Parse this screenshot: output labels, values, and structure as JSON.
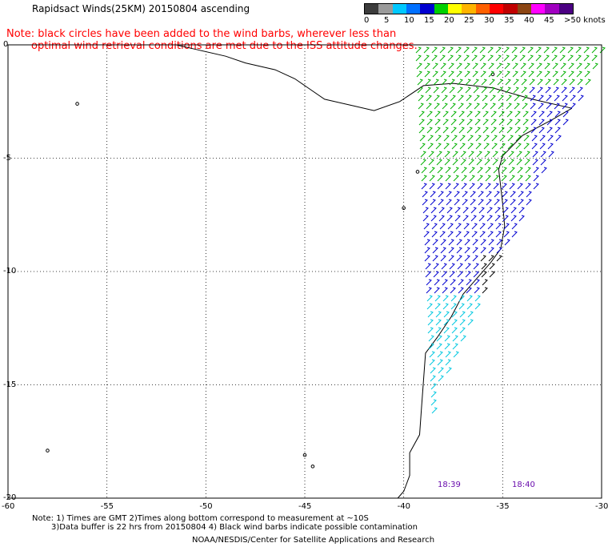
{
  "title": "Rapidsact Winds(25KM) 20150804 ascending",
  "note": {
    "line1": "Note: black circles have been added to the wind barbs, wherever less than",
    "line2": "optimal wind retrieval conditions are met due to the ISS attitude changes."
  },
  "legend": {
    "labels": [
      "0",
      "5",
      "10",
      "15",
      "20",
      "25",
      "30",
      "35",
      "40",
      "45",
      ">50 knots"
    ],
    "colors": [
      "#3c3c3c",
      "#9a9a9a",
      "#00c8ff",
      "#0070ff",
      "#0000d0",
      "#00d000",
      "#ffff00",
      "#ffb400",
      "#ff6000",
      "#ff0000",
      "#c00000",
      "#8b4513",
      "#ff00ff",
      "#a000c0",
      "#4b0082"
    ]
  },
  "axes": {
    "x_ticks": [
      "-60",
      "-55",
      "-50",
      "-45",
      "-40",
      "-35",
      "-30"
    ],
    "y_ticks": [
      "0",
      "-5",
      "-10",
      "-15",
      "-20"
    ]
  },
  "times": [
    "18:39",
    "18:40"
  ],
  "footnote": {
    "line1": "Note: 1) Times are GMT 2)Times along bottom correspond to measurement at ~10S",
    "line2": "3)Data buffer is 22 hrs from 20150804 4) Black wind barbs indicate possible contamination"
  },
  "credit": "NOAA/NESDIS/Center for Satellite Applications and Research",
  "map": {
    "lon_range": [
      -60,
      -30
    ],
    "lat_range": [
      -20,
      0
    ],
    "wind_colors": {
      "light": "#00c8e0",
      "moderate": "#0000d0",
      "strong": "#00b000",
      "contaminated": "#000000"
    }
  }
}
